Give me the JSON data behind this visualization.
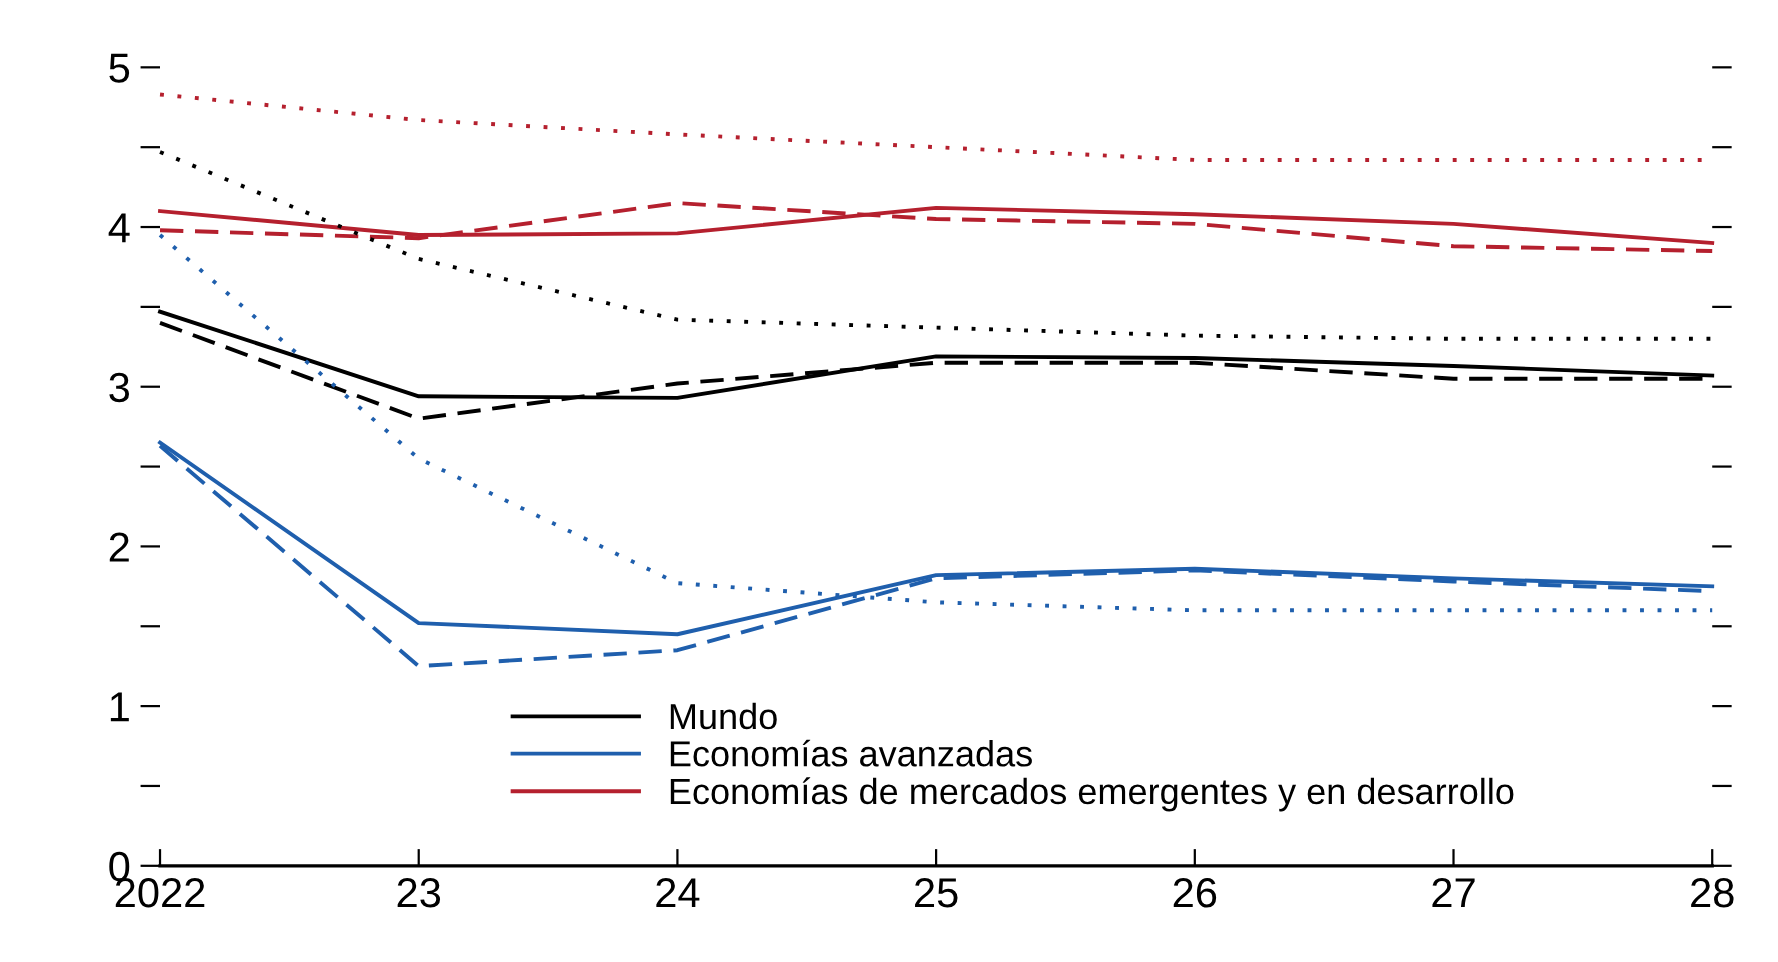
{
  "chart_data": {
    "type": "line",
    "x": [
      2022,
      2023,
      2024,
      2025,
      2026,
      2027,
      2028
    ],
    "xlim": [
      2022,
      2028
    ],
    "xticks": [
      {
        "value": 2022,
        "label": "2022"
      },
      {
        "value": 2023,
        "label": "23"
      },
      {
        "value": 2024,
        "label": "24"
      },
      {
        "value": 2025,
        "label": "25"
      },
      {
        "value": 2026,
        "label": "26"
      },
      {
        "value": 2027,
        "label": "27"
      },
      {
        "value": 2028,
        "label": "28"
      }
    ],
    "ylim": [
      0,
      5
    ],
    "yticks": [
      0,
      {
        "value": 0.5,
        "label": null
      },
      1,
      {
        "value": 1.5,
        "label": null
      },
      2,
      {
        "value": 2.5,
        "label": null
      },
      3,
      {
        "value": 3.5,
        "label": null
      },
      4,
      {
        "value": 4.5,
        "label": null
      },
      5
    ],
    "grid": false,
    "legend": "bottom",
    "series": [
      {
        "name": "Mundo",
        "color": "#000000",
        "line_style": "solid",
        "values": [
          3.47,
          2.94,
          2.93,
          3.19,
          3.18,
          3.13,
          3.07
        ]
      },
      {
        "name": "Economías avanzadas",
        "color": "#1f5fad",
        "line_style": "solid",
        "values": [
          2.65,
          1.52,
          1.45,
          1.82,
          1.86,
          1.8,
          1.75
        ]
      },
      {
        "name": "Economías de mercados emergentes y en desarrollo",
        "color": "#b5202e",
        "line_style": "solid",
        "values": [
          4.1,
          3.95,
          3.96,
          4.12,
          4.08,
          4.02,
          3.9
        ]
      },
      {
        "color": "#000000",
        "line_style": "dashed",
        "values": [
          3.4,
          2.8,
          3.02,
          3.15,
          3.15,
          3.05,
          3.05
        ]
      },
      {
        "color": "#1f5fad",
        "line_style": "dashed",
        "values": [
          2.63,
          1.25,
          1.35,
          1.8,
          1.85,
          1.78,
          1.72
        ]
      },
      {
        "color": "#b5202e",
        "line_style": "dashed",
        "values": [
          3.98,
          3.93,
          4.15,
          4.05,
          4.02,
          3.88,
          3.85
        ]
      },
      {
        "color": "#000000",
        "line_style": "dotted",
        "values": [
          4.47,
          3.8,
          3.42,
          3.37,
          3.32,
          3.3,
          3.3
        ]
      },
      {
        "color": "#1f5fad",
        "line_style": "dotted",
        "values": [
          3.95,
          2.55,
          1.77,
          1.65,
          1.6,
          1.6,
          1.6
        ]
      },
      {
        "color": "#b5202e",
        "line_style": "dotted",
        "values": [
          4.83,
          4.67,
          4.58,
          4.5,
          4.42,
          4.42,
          4.42
        ]
      }
    ]
  }
}
